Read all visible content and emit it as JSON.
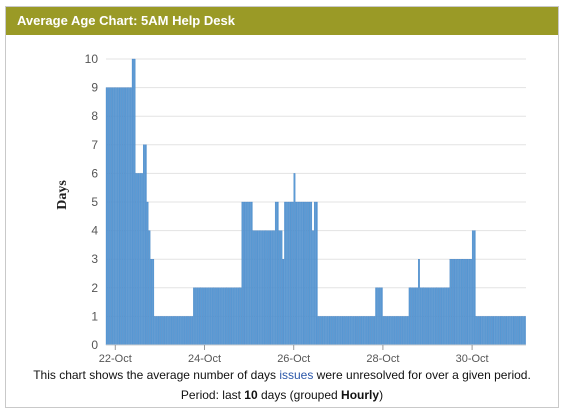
{
  "panel": {
    "title": "Average Age Chart: 5AM Help Desk"
  },
  "caption": {
    "line1_pre": "This chart shows the average number of days ",
    "line1_link": "issues",
    "line1_post": " were unresolved for over a given period.",
    "line2_pre": "Period: last ",
    "line2_count": "10",
    "line2_mid": " days (grouped ",
    "line2_group": "Hourly",
    "line2_post": ")"
  },
  "colors": {
    "header": "#9a9a26",
    "bar": "#5b9bd5",
    "bar_stroke": "#3d7cc0",
    "link": "#2a56a8"
  },
  "chart_data": {
    "type": "bar",
    "ylabel": "Days",
    "xlabel": "",
    "ylim": [
      0,
      10
    ],
    "yticks": [
      0,
      1,
      2,
      3,
      4,
      5,
      6,
      7,
      8,
      9,
      10
    ],
    "x_ticks": [
      "22-Oct",
      "24-Oct",
      "26-Oct",
      "28-Oct",
      "30-Oct"
    ],
    "x_start": "2023-10-21 19:00",
    "x_end": "2023-10-31 05:00",
    "grouping": "hourly",
    "segments": [
      {
        "from": "2023-10-21 19:00",
        "to": "2023-10-22 09:00",
        "value": 9
      },
      {
        "from": "2023-10-22 09:00",
        "to": "2023-10-22 11:00",
        "value": 10
      },
      {
        "from": "2023-10-22 11:00",
        "to": "2023-10-22 15:00",
        "value": 6
      },
      {
        "from": "2023-10-22 15:00",
        "to": "2023-10-22 17:00",
        "value": 7
      },
      {
        "from": "2023-10-22 17:00",
        "to": "2023-10-22 18:00",
        "value": 5
      },
      {
        "from": "2023-10-22 18:00",
        "to": "2023-10-22 19:00",
        "value": 4
      },
      {
        "from": "2023-10-22 19:00",
        "to": "2023-10-22 21:00",
        "value": 3
      },
      {
        "from": "2023-10-22 21:00",
        "to": "2023-10-23 18:00",
        "value": 1
      },
      {
        "from": "2023-10-23 18:00",
        "to": "2023-10-24 20:00",
        "value": 2
      },
      {
        "from": "2023-10-24 20:00",
        "to": "2023-10-25 02:00",
        "value": 5
      },
      {
        "from": "2023-10-25 02:00",
        "to": "2023-10-25 14:00",
        "value": 4
      },
      {
        "from": "2023-10-25 14:00",
        "to": "2023-10-25 16:00",
        "value": 5
      },
      {
        "from": "2023-10-25 16:00",
        "to": "2023-10-25 18:00",
        "value": 4
      },
      {
        "from": "2023-10-25 18:00",
        "to": "2023-10-25 19:00",
        "value": 3
      },
      {
        "from": "2023-10-25 19:00",
        "to": "2023-10-26 00:00",
        "value": 5
      },
      {
        "from": "2023-10-26 00:00",
        "to": "2023-10-26 01:00",
        "value": 6
      },
      {
        "from": "2023-10-26 01:00",
        "to": "2023-10-26 10:00",
        "value": 5
      },
      {
        "from": "2023-10-26 10:00",
        "to": "2023-10-26 11:00",
        "value": 4
      },
      {
        "from": "2023-10-26 11:00",
        "to": "2023-10-26 13:00",
        "value": 5
      },
      {
        "from": "2023-10-26 13:00",
        "to": "2023-10-27 20:00",
        "value": 1
      },
      {
        "from": "2023-10-27 20:00",
        "to": "2023-10-28 00:00",
        "value": 2
      },
      {
        "from": "2023-10-28 00:00",
        "to": "2023-10-28 14:00",
        "value": 1
      },
      {
        "from": "2023-10-28 14:00",
        "to": "2023-10-28 19:00",
        "value": 2
      },
      {
        "from": "2023-10-28 19:00",
        "to": "2023-10-28 20:00",
        "value": 3
      },
      {
        "from": "2023-10-28 20:00",
        "to": "2023-10-29 12:00",
        "value": 2
      },
      {
        "from": "2023-10-29 12:00",
        "to": "2023-10-30 00:00",
        "value": 3
      },
      {
        "from": "2023-10-30 00:00",
        "to": "2023-10-30 02:00",
        "value": 4
      },
      {
        "from": "2023-10-30 02:00",
        "to": "2023-10-31 05:00",
        "value": 1
      }
    ],
    "grid": true,
    "legend": "none"
  }
}
